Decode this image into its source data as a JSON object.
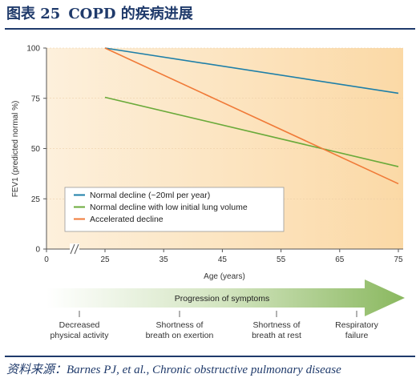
{
  "figure": {
    "label": "图表 25",
    "title": "COPD 的疾病进展",
    "source": "资料来源：Barnes PJ, et al., Chronic obstructive pulmonary disease"
  },
  "chart_data": {
    "type": "line",
    "ylabel": "FEV1 (predicted normal %)",
    "xlabel": "Age (years)",
    "xlim": [
      0,
      75
    ],
    "ylim": [
      0,
      100
    ],
    "x_axis_break": "between 0 and 25",
    "x_ticks": [
      "0",
      "25",
      "35",
      "45",
      "55",
      "65",
      "75"
    ],
    "y_ticks": [
      "0",
      "25",
      "50",
      "75",
      "100"
    ],
    "legend_position": "bottom-left",
    "series": [
      {
        "name": "Normal decline (~20ml per year)",
        "color": "#1e7fa8",
        "x": [
          25,
          75
        ],
        "y": [
          100,
          77.5
        ]
      },
      {
        "name": "Normal decline with low initial lung volume",
        "color": "#6aaa3a",
        "x": [
          25,
          75
        ],
        "y": [
          75.5,
          41
        ]
      },
      {
        "name": "Accelerated decline",
        "color": "#f07a38",
        "x": [
          25,
          75
        ],
        "y": [
          100,
          32.5
        ]
      }
    ],
    "progression": {
      "title": "Progression of symptoms",
      "stages": [
        "Decreased physical activity",
        "Shortness of breath on exertion",
        "Shortness of breath at rest",
        "Respiratory failure"
      ],
      "stage_lines": [
        [
          "Decreased",
          "physical activity"
        ],
        [
          "Shortness of",
          "breath on exertion"
        ],
        [
          "Shortness of",
          "breath at rest"
        ],
        [
          "Respiratory",
          "failure"
        ]
      ]
    }
  }
}
